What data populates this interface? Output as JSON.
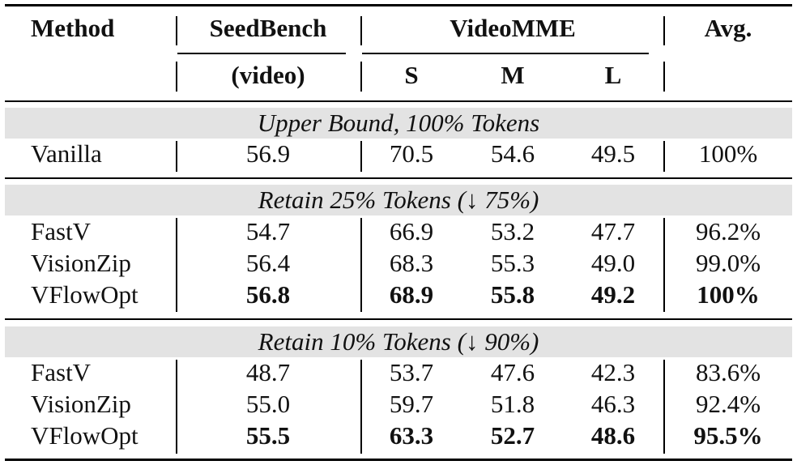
{
  "header": {
    "method": "Method",
    "seedbench": "SeedBench",
    "seedbench_sub": "(video)",
    "videomme": "VideoMME",
    "s": "S",
    "m": "M",
    "l": "L",
    "avg": "Avg."
  },
  "sections": [
    {
      "title": "Upper Bound, 100% Tokens",
      "rows": [
        {
          "method": "Vanilla",
          "seed": "56.9",
          "s": "70.5",
          "m": "54.6",
          "l": "49.5",
          "avg": "100%",
          "bold": false
        }
      ]
    },
    {
      "title": "Retain 25% Tokens (↓ 75%)",
      "rows": [
        {
          "method": "FastV",
          "seed": "54.7",
          "s": "66.9",
          "m": "53.2",
          "l": "47.7",
          "avg": "96.2%",
          "bold": false
        },
        {
          "method": "VisionZip",
          "seed": "56.4",
          "s": "68.3",
          "m": "55.3",
          "l": "49.0",
          "avg": "99.0%",
          "bold": false
        },
        {
          "method": "VFlowOpt",
          "seed": "56.8",
          "s": "68.9",
          "m": "55.8",
          "l": "49.2",
          "avg": "100%",
          "bold": true
        }
      ]
    },
    {
      "title": "Retain 10% Tokens (↓ 90%)",
      "rows": [
        {
          "method": "FastV",
          "seed": "48.7",
          "s": "53.7",
          "m": "47.6",
          "l": "42.3",
          "avg": "83.6%",
          "bold": false
        },
        {
          "method": "VisionZip",
          "seed": "55.0",
          "s": "59.7",
          "m": "51.8",
          "l": "46.3",
          "avg": "92.4%",
          "bold": false
        },
        {
          "method": "VFlowOpt",
          "seed": "55.5",
          "s": "63.3",
          "m": "52.7",
          "l": "48.6",
          "avg": "95.5%",
          "bold": true
        }
      ]
    }
  ]
}
